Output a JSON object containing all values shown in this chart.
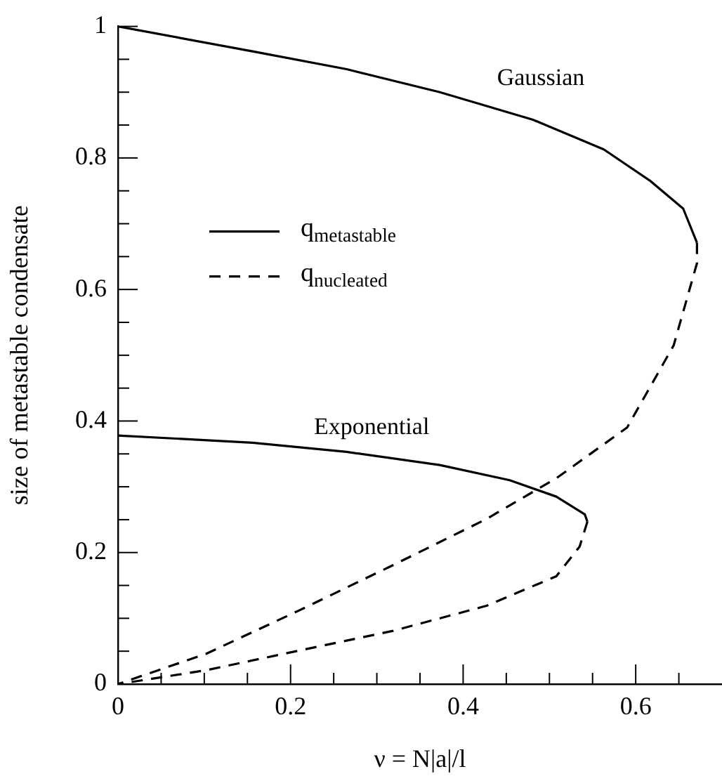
{
  "chart_data": {
    "type": "line",
    "xlabel": "ν = N|a|/l",
    "ylabel": "size of metastable condensate",
    "xlim": [
      0,
      0.7
    ],
    "ylim": [
      0,
      1
    ],
    "xticks": [
      0,
      {
        "value": 0.05,
        "label": null
      },
      {
        "value": 0.1,
        "label": null
      },
      {
        "value": 0.15,
        "label": null
      },
      0.2,
      {
        "value": 0.25,
        "label": null
      },
      {
        "value": 0.3,
        "label": null
      },
      {
        "value": 0.35,
        "label": null
      },
      0.4,
      {
        "value": 0.45,
        "label": null
      },
      {
        "value": 0.5,
        "label": null
      },
      {
        "value": 0.55,
        "label": null
      },
      0.6,
      {
        "value": 0.65,
        "label": null
      }
    ],
    "yticks": [
      0,
      {
        "value": 0.05,
        "label": null
      },
      {
        "value": 0.1,
        "label": null
      },
      {
        "value": 0.15,
        "label": null
      },
      0.2,
      {
        "value": 0.25,
        "label": null
      },
      {
        "value": 0.3,
        "label": null
      },
      {
        "value": 0.35,
        "label": null
      },
      0.4,
      {
        "value": 0.45,
        "label": null
      },
      {
        "value": 0.5,
        "label": null
      },
      {
        "value": 0.55,
        "label": null
      },
      0.6,
      {
        "value": 0.65,
        "label": null
      },
      {
        "value": 0.7,
        "label": null
      },
      {
        "value": 0.75,
        "label": null
      },
      0.8,
      {
        "value": 0.85,
        "label": null
      },
      {
        "value": 0.9,
        "label": null
      },
      {
        "value": 0.95,
        "label": null
      },
      1
    ],
    "grid": false,
    "legend": "left",
    "marker": "none",
    "series": [
      {
        "name": "q$_{metastable}$",
        "line_style": "solid",
        "color": "#000000",
        "x": [
          0,
          0.156,
          0.265,
          0.373,
          0.481,
          0.563,
          0.617,
          0.655,
          0.671
        ],
        "values": [
          1,
          0.962,
          0.935,
          0.9,
          0.858,
          0.813,
          0.765,
          0.723,
          0.671
        ]
      },
      {
        "name": "q$_{nucleated}$",
        "line_style": "dashed",
        "color": "#000000",
        "x": [
          0.671,
          0.671,
          0.644,
          0.59,
          0.508,
          0.427,
          0.319,
          0.21,
          0.102,
          0
        ],
        "values": [
          0.671,
          0.64,
          0.515,
          0.39,
          0.313,
          0.251,
          0.181,
          0.112,
          0.046,
          0
        ]
      },
      {
        "line_style": "solid",
        "color": "#000000",
        "x": [
          0,
          0.156,
          0.265,
          0.373,
          0.454,
          0.508,
          0.541,
          0.544
        ],
        "values": [
          0.378,
          0.367,
          0.353,
          0.333,
          0.31,
          0.285,
          0.258,
          0.247
        ]
      },
      {
        "line_style": "dashed",
        "color": "#000000",
        "x": [
          0.544,
          0.535,
          0.508,
          0.427,
          0.319,
          0.21,
          0.102,
          0
        ],
        "values": [
          0.247,
          0.209,
          0.164,
          0.119,
          0.081,
          0.051,
          0.021,
          0
        ]
      }
    ],
    "annotations": [
      "Gaussian",
      "Exponential"
    ]
  }
}
